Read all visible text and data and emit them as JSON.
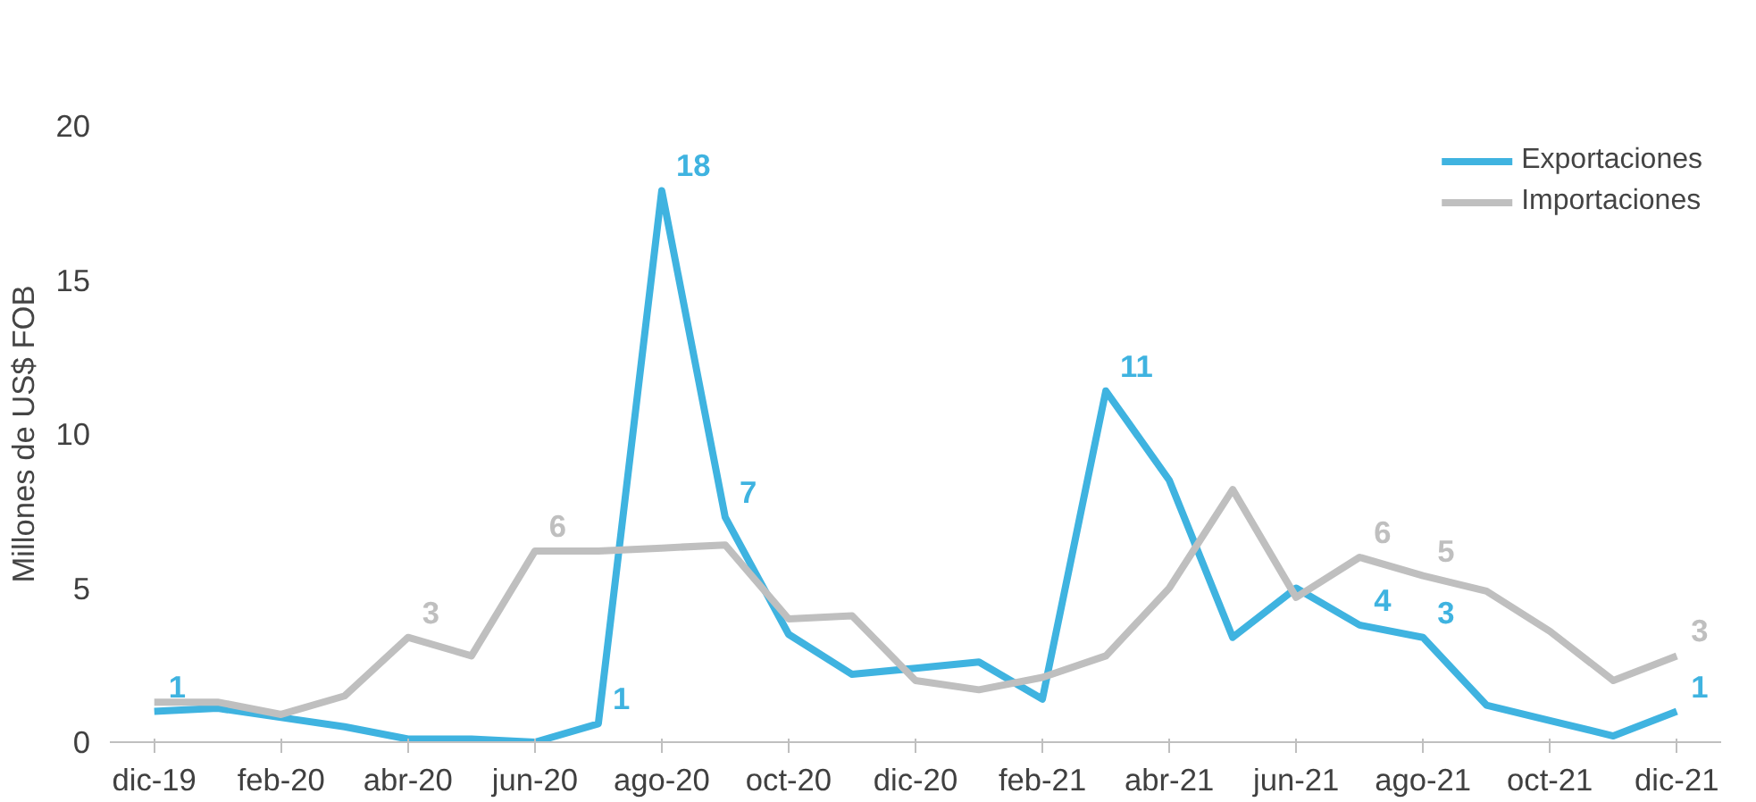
{
  "chart_data": {
    "type": "line",
    "ylabel": "Millones de US$ FOB",
    "categories": [
      "dic-19",
      null,
      "feb-20",
      null,
      "abr-20",
      null,
      "jun-20",
      null,
      "ago-20",
      null,
      "oct-20",
      null,
      "dic-20",
      null,
      "feb-21",
      null,
      "abr-21",
      null,
      "jun-21",
      null,
      "ago-21",
      null,
      "oct-21",
      null,
      "dic-21"
    ],
    "series": [
      {
        "name": "Exportaciones",
        "color": "#3fb3e0",
        "values": [
          1.0,
          1.1,
          0.8,
          0.5,
          0.1,
          0.1,
          0.0,
          0.6,
          17.9,
          7.3,
          3.5,
          2.2,
          2.4,
          2.6,
          1.4,
          11.4,
          8.5,
          3.4,
          5.0,
          3.8,
          3.4,
          1.2,
          0.7,
          0.2,
          1.0
        ],
        "value_labels": [
          "1",
          null,
          null,
          null,
          null,
          null,
          null,
          "1",
          "18",
          "7",
          null,
          null,
          null,
          null,
          null,
          "11",
          null,
          null,
          null,
          "4",
          "3",
          null,
          null,
          null,
          "1"
        ]
      },
      {
        "name": "Importaciones",
        "color": "#bfbfbf",
        "values": [
          1.3,
          1.3,
          0.9,
          1.5,
          3.4,
          2.8,
          6.2,
          6.2,
          6.3,
          6.4,
          4.0,
          4.1,
          2.0,
          1.7,
          2.1,
          2.8,
          5.0,
          8.2,
          4.7,
          6.0,
          5.4,
          4.9,
          3.6,
          2.0,
          2.8
        ],
        "value_labels": [
          null,
          null,
          null,
          null,
          "3",
          null,
          "6",
          null,
          null,
          null,
          null,
          null,
          null,
          null,
          null,
          null,
          null,
          null,
          null,
          "6",
          "5",
          null,
          null,
          null,
          "3"
        ]
      }
    ],
    "ylim": [
      0,
      20
    ],
    "yticks": [
      0,
      5,
      10,
      15,
      20
    ],
    "grid": false,
    "legend": "top right",
    "marker": "none",
    "line_style": "solid"
  }
}
